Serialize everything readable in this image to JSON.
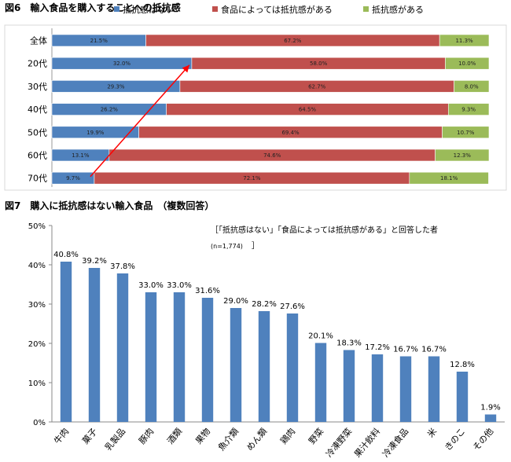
{
  "colors": {
    "blue": "#4f81bd",
    "red": "#c0504d",
    "green": "#9bbb59",
    "arrow": "#ff0000",
    "grid": "#c0c0c0"
  },
  "chart_data": [
    {
      "type": "bar",
      "orientation": "horizontal-stacked-100",
      "title": "図6　輸入食品を購入することへの抵抗感",
      "categories": [
        "全体",
        "20代",
        "30代",
        "40代",
        "50代",
        "60代",
        "70代"
      ],
      "series": [
        {
          "name": "抵抗感はない",
          "color": "#4f81bd",
          "values": [
            21.5,
            32.0,
            29.3,
            26.2,
            19.9,
            13.1,
            9.7
          ]
        },
        {
          "name": "食品によっては抵抗感がある",
          "color": "#c0504d",
          "values": [
            67.2,
            58.0,
            62.7,
            64.5,
            69.4,
            74.6,
            72.1
          ]
        },
        {
          "name": "抵抗感がある",
          "color": "#9bbb59",
          "values": [
            11.3,
            10.0,
            8.0,
            9.3,
            10.7,
            12.3,
            18.1
          ]
        }
      ],
      "value_labels": [
        [
          "21.5%",
          "67.2%",
          "11.3%"
        ],
        [
          "32.0%",
          "58.0%",
          "10.0%"
        ],
        [
          "29.3%",
          "62.7%",
          "8.0%"
        ],
        [
          "26.2%",
          "64.5%",
          "9.3%"
        ],
        [
          "19.9%",
          "69.4%",
          "10.7%"
        ],
        [
          "13.1%",
          "74.6%",
          "12.3%"
        ],
        [
          "9.7%",
          "72.1%",
          "18.1%"
        ]
      ],
      "legend_position": "top",
      "annotation": {
        "type": "arrow",
        "from_category": "70代",
        "to_category": "20代",
        "series": "抵抗感はない"
      }
    },
    {
      "type": "bar",
      "title": "図7　購入に抵抗感はない輸入食品　（複数回答）",
      "categories": [
        "牛肉",
        "菓子",
        "乳製品",
        "豚肉",
        "酒類",
        "果物",
        "魚介類",
        "めん類",
        "鶏肉",
        "野菜",
        "冷凍野菜",
        "果汁飲料",
        "冷凍食品",
        "米",
        "きのこ",
        "その他"
      ],
      "values": [
        40.8,
        39.2,
        37.8,
        33.0,
        33.0,
        31.6,
        29.0,
        28.2,
        27.6,
        20.1,
        18.3,
        17.2,
        16.7,
        16.7,
        12.8,
        1.9
      ],
      "value_labels": [
        "40.8%",
        "39.2%",
        "37.8%",
        "33.0%",
        "33.0%",
        "31.6%",
        "29.0%",
        "28.2%",
        "27.6%",
        "20.1%",
        "18.3%",
        "17.2%",
        "16.7%",
        "16.7%",
        "12.8%",
        "1.9%"
      ],
      "ylim": [
        0,
        50
      ],
      "yticks": [
        0,
        10,
        20,
        30,
        40,
        50
      ],
      "ytick_labels": [
        "0%",
        "10%",
        "20%",
        "30%",
        "40%",
        "50%"
      ],
      "grid": false,
      "color": "#4f81bd",
      "note_line1": "［「抵抗感はない」「食品によっては抵抗感がある」と回答した者",
      "note_line2": "(n=1,774)",
      "note_bracket": "］"
    }
  ]
}
